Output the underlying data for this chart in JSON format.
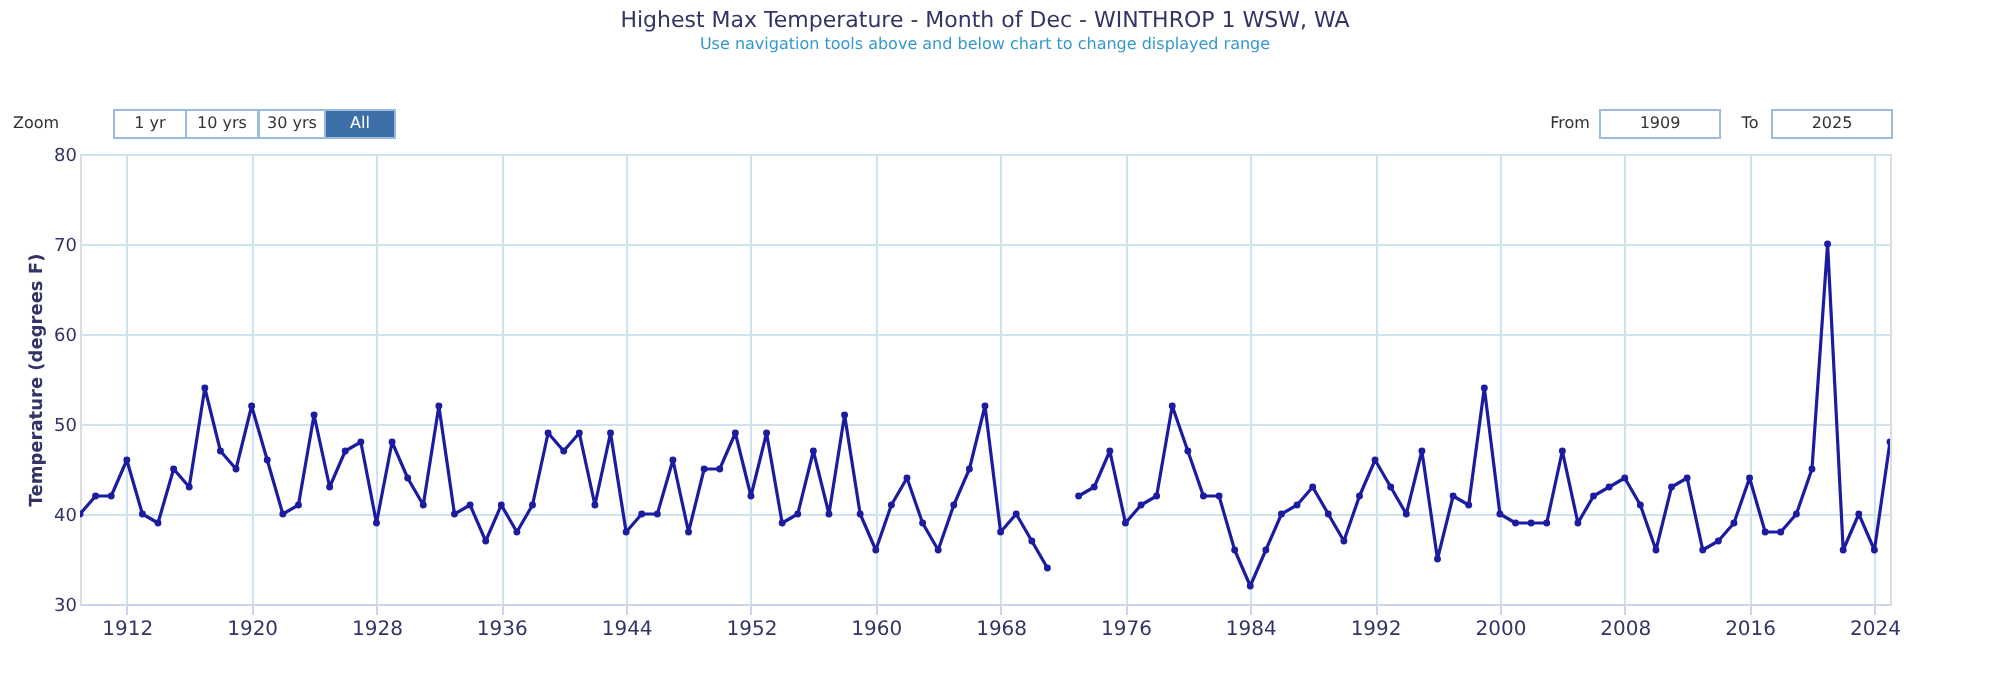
{
  "chart_data": {
    "type": "line",
    "title": "Highest Max Temperature - Month of Dec - WINTHROP 1 WSW, WA",
    "subtitle": "Use navigation tools above and below chart to change displayed range",
    "ylabel": "Temperature (degrees F)",
    "annotations": [
      "Zoom",
      "1 yr",
      "10 yrs",
      "30 yrs",
      "All",
      "From",
      "1909",
      "To",
      "2025"
    ],
    "x": [
      1909,
      1910,
      1911,
      1912,
      1913,
      1914,
      1915,
      1916,
      1917,
      1918,
      1919,
      1920,
      1921,
      1922,
      1923,
      1924,
      1925,
      1926,
      1927,
      1928,
      1929,
      1930,
      1931,
      1932,
      1933,
      1934,
      1935,
      1936,
      1937,
      1938,
      1939,
      1940,
      1941,
      1942,
      1943,
      1944,
      1945,
      1946,
      1947,
      1948,
      1949,
      1950,
      1951,
      1952,
      1953,
      1954,
      1955,
      1956,
      1957,
      1958,
      1959,
      1960,
      1961,
      1962,
      1963,
      1964,
      1965,
      1966,
      1967,
      1968,
      1969,
      1970,
      1971,
      1972,
      1973,
      1974,
      1975,
      1976,
      1977,
      1978,
      1979,
      1980,
      1981,
      1982,
      1983,
      1984,
      1985,
      1986,
      1987,
      1988,
      1989,
      1990,
      1991,
      1992,
      1993,
      1994,
      1995,
      1996,
      1997,
      1998,
      1999,
      2000,
      2001,
      2002,
      2003,
      2004,
      2005,
      2006,
      2007,
      2008,
      2009,
      2010,
      2011,
      2012,
      2013,
      2014,
      2015,
      2016,
      2017,
      2018,
      2019,
      2020,
      2021,
      2022,
      2023,
      2024,
      2025
    ],
    "series": [
      {
        "color": "#1c1ca0",
        "values": [
          40,
          42,
          42,
          46,
          40,
          39,
          45,
          43,
          54,
          47,
          45,
          52,
          46,
          40,
          41,
          51,
          43,
          47,
          48,
          39,
          48,
          44,
          41,
          52,
          40,
          41,
          37,
          41,
          38,
          41,
          49,
          47,
          49,
          41,
          49,
          38,
          40,
          40,
          46,
          38,
          45,
          45,
          49,
          42,
          49,
          39,
          40,
          47,
          40,
          51,
          40,
          36,
          41,
          44,
          39,
          36,
          41,
          45,
          52,
          38,
          40,
          37,
          34,
          null,
          42,
          43,
          47,
          39,
          41,
          42,
          52,
          47,
          42,
          42,
          36,
          32,
          36,
          40,
          41,
          43,
          40,
          37,
          42,
          46,
          43,
          40,
          47,
          35,
          42,
          41,
          54,
          40,
          39,
          39,
          39,
          47,
          39,
          42,
          43,
          44,
          41,
          36,
          43,
          44,
          36,
          37,
          39,
          44,
          38,
          38,
          40,
          45,
          70,
          36,
          40,
          36,
          48
        ]
      }
    ],
    "xlim": [
      1909,
      2025
    ],
    "xticks": [
      1912,
      1920,
      1928,
      1936,
      1944,
      1952,
      1960,
      1968,
      1976,
      1984,
      1992,
      2000,
      2008,
      2016,
      2024
    ],
    "ylim": [
      30,
      80
    ],
    "yticks": [
      30,
      40,
      50,
      60,
      70,
      80
    ],
    "grid": true,
    "marker": "circle",
    "line_style": "solid",
    "legend": false
  }
}
